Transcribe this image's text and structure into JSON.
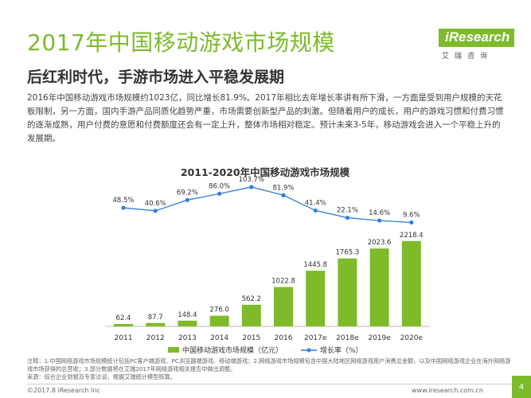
{
  "page": {
    "title": "2017年中国移动游戏市场规模",
    "subtitle": "后红利时代，手游市场进入平稳发展期",
    "body": "2016年中国移动游戏市场规模约1023亿，同比增长81.9%。2017年相比去年增长率讲有所下滑，一方面是受到用户规模的天花板限制，另一方面，国内手游产品同质化趋势严重，市场需要创新型产品的刺激。但随着用户的成长，用户的游戏习惯和付费习惯的逐渐成熟，用户付费的意愿和付费额度还会有一定上升，整体市场相对稳定。预计未来3-5年，移动游戏会进入一个平稳上升的发展期。",
    "footnote_1": "注释：1.中国网络游戏市场规模统计包括PC客户端游戏、PC浏览器端游戏、移动端游戏；2.网络游戏市场规模包含中国大陆地区网络游戏用户消费总金额，以及中国网络游戏企业在海外网络游戏市场获得的总营收；3.部分数据将在艾瑞2017年网络游戏相关报告中做出调整。",
    "footnote_2": "来源：综合企业财报及专家访谈，根据艾瑞统计模型核算。",
    "copyright": "©2017.8 iResearch Inc",
    "website": "www.iresearch.com.cn",
    "page_number": "4"
  },
  "logo": {
    "name": "iResearch",
    "subtitle": "艾瑞咨询"
  },
  "colors": {
    "accent": "#7dbb2a",
    "bar": "#7dbb2a",
    "line": "#2f7fd8"
  },
  "chart_data": {
    "type": "bar",
    "title": "2011-2020年中国移动游戏市场规模",
    "categories": [
      "2011",
      "2012",
      "2013",
      "2014",
      "2015",
      "2016",
      "2017e",
      "2018e",
      "2019e",
      "2020e"
    ],
    "series": [
      {
        "name": "中国移动游戏市场规模（亿元）",
        "type": "bar",
        "values": [
          62.4,
          87.7,
          148.4,
          276.0,
          562.2,
          1022.8,
          1445.8,
          1765.3,
          2023.6,
          2218.4
        ],
        "labels": [
          "62.4",
          "87.7",
          "148.4",
          "276.0",
          "562.2",
          "1022.8",
          "1445.8",
          "1765.3",
          "2023.6",
          "2218.4"
        ]
      },
      {
        "name": "增长率（%）",
        "type": "line",
        "values": [
          48.5,
          40.6,
          69.2,
          86.0,
          103.7,
          81.9,
          41.4,
          22.1,
          14.6,
          9.6
        ],
        "labels": [
          "48.5%",
          "40.6%",
          "69.2%",
          "86.0%",
          "103.7%",
          "81.9%",
          "41.4%",
          "22.1%",
          "14.6%",
          "9.6%"
        ]
      }
    ],
    "ylim": [
      0,
      2400
    ],
    "y2lim": [
      0,
      110
    ],
    "legend_position": "bottom",
    "grid": false
  }
}
